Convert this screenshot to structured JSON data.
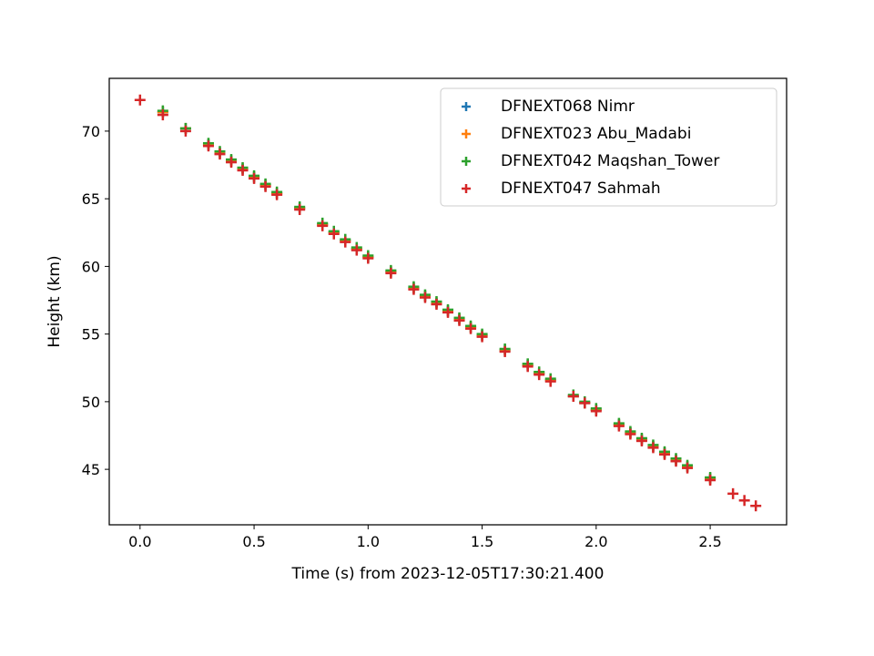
{
  "chart_data": {
    "type": "scatter",
    "title": "",
    "xlabel": "Time (s) from 2023-12-05T17:30:21.400",
    "ylabel": "Height (km)",
    "xlim": [
      -0.135,
      2.835
    ],
    "ylim": [
      40.9,
      73.9
    ],
    "xticks": [
      0.0,
      0.5,
      1.0,
      1.5,
      2.0,
      2.5
    ],
    "xtick_labels": [
      "0.0",
      "0.5",
      "1.0",
      "1.5",
      "2.0",
      "2.5"
    ],
    "yticks": [
      45,
      50,
      55,
      60,
      65,
      70
    ],
    "ytick_labels": [
      "45",
      "50",
      "55",
      "60",
      "65",
      "70"
    ],
    "grid": false,
    "marker": "+",
    "legend_position": "top-right",
    "series": [
      {
        "name": "DFNEXT068 Nimr",
        "color": "#1f77b4",
        "points": [
          [
            0.1,
            71.4
          ],
          [
            0.2,
            70.2
          ],
          [
            0.3,
            69.0
          ],
          [
            0.35,
            68.4
          ],
          [
            0.4,
            67.8
          ],
          [
            0.45,
            67.2
          ],
          [
            0.5,
            66.6
          ],
          [
            0.55,
            66.0
          ],
          [
            0.6,
            65.4
          ],
          [
            0.7,
            64.3
          ],
          [
            0.8,
            63.1
          ],
          [
            0.85,
            62.5
          ],
          [
            0.9,
            61.9
          ],
          [
            0.95,
            61.3
          ],
          [
            1.0,
            60.7
          ],
          [
            1.1,
            59.6
          ],
          [
            1.2,
            58.4
          ],
          [
            1.25,
            57.8
          ],
          [
            1.3,
            57.3
          ],
          [
            1.35,
            56.7
          ],
          [
            1.4,
            56.1
          ],
          [
            1.45,
            55.5
          ],
          [
            1.5,
            54.9
          ],
          [
            1.6,
            53.8
          ],
          [
            1.7,
            52.7
          ],
          [
            1.75,
            52.1
          ],
          [
            1.8,
            51.6
          ],
          [
            1.9,
            50.4
          ],
          [
            1.95,
            49.9
          ],
          [
            2.0,
            49.4
          ],
          [
            2.1,
            48.3
          ],
          [
            2.15,
            47.7
          ],
          [
            2.2,
            47.2
          ],
          [
            2.25,
            46.7
          ],
          [
            2.3,
            46.2
          ],
          [
            2.35,
            45.7
          ],
          [
            2.4,
            45.2
          ],
          [
            2.5,
            44.3
          ]
        ]
      },
      {
        "name": "DFNEXT023 Abu_Madabi",
        "color": "#ff7f0e",
        "points": [
          [
            0.1,
            71.4
          ],
          [
            0.2,
            70.2
          ],
          [
            0.3,
            69.0
          ],
          [
            0.35,
            68.4
          ],
          [
            0.4,
            67.8
          ],
          [
            0.45,
            67.2
          ],
          [
            0.5,
            66.6
          ],
          [
            0.55,
            66.0
          ],
          [
            0.6,
            65.4
          ],
          [
            0.7,
            64.3
          ],
          [
            0.8,
            63.1
          ],
          [
            0.85,
            62.5
          ],
          [
            0.9,
            61.9
          ],
          [
            0.95,
            61.3
          ],
          [
            1.0,
            60.7
          ],
          [
            1.1,
            59.6
          ],
          [
            1.2,
            58.4
          ],
          [
            1.25,
            57.8
          ],
          [
            1.3,
            57.3
          ],
          [
            1.35,
            56.7
          ],
          [
            1.4,
            56.1
          ],
          [
            1.45,
            55.5
          ],
          [
            1.5,
            54.9
          ],
          [
            1.6,
            53.8
          ],
          [
            1.7,
            52.7
          ],
          [
            1.75,
            52.1
          ],
          [
            1.8,
            51.6
          ],
          [
            1.9,
            50.4
          ],
          [
            1.95,
            49.9
          ],
          [
            2.0,
            49.4
          ],
          [
            2.1,
            48.3
          ],
          [
            2.15,
            47.7
          ],
          [
            2.2,
            47.2
          ],
          [
            2.25,
            46.7
          ],
          [
            2.3,
            46.2
          ],
          [
            2.35,
            45.7
          ],
          [
            2.4,
            45.2
          ],
          [
            2.5,
            44.3
          ]
        ]
      },
      {
        "name": "DFNEXT042 Maqshan_Tower",
        "color": "#2ca02c",
        "points": [
          [
            0.1,
            71.5
          ],
          [
            0.2,
            70.2
          ],
          [
            0.3,
            69.1
          ],
          [
            0.35,
            68.5
          ],
          [
            0.4,
            67.9
          ],
          [
            0.45,
            67.3
          ],
          [
            0.5,
            66.7
          ],
          [
            0.55,
            66.1
          ],
          [
            0.6,
            65.5
          ],
          [
            0.7,
            64.4
          ],
          [
            0.8,
            63.2
          ],
          [
            0.85,
            62.6
          ],
          [
            0.9,
            62.0
          ],
          [
            0.95,
            61.4
          ],
          [
            1.0,
            60.8
          ],
          [
            1.1,
            59.7
          ],
          [
            1.2,
            58.5
          ],
          [
            1.25,
            57.9
          ],
          [
            1.3,
            57.4
          ],
          [
            1.35,
            56.8
          ],
          [
            1.4,
            56.2
          ],
          [
            1.45,
            55.6
          ],
          [
            1.5,
            55.0
          ],
          [
            1.6,
            53.9
          ],
          [
            1.7,
            52.8
          ],
          [
            1.75,
            52.2
          ],
          [
            1.8,
            51.7
          ],
          [
            1.9,
            50.5
          ],
          [
            1.95,
            50.0
          ],
          [
            2.0,
            49.5
          ],
          [
            2.1,
            48.4
          ],
          [
            2.15,
            47.8
          ],
          [
            2.2,
            47.3
          ],
          [
            2.25,
            46.8
          ],
          [
            2.3,
            46.3
          ],
          [
            2.35,
            45.8
          ],
          [
            2.4,
            45.3
          ],
          [
            2.5,
            44.4
          ]
        ]
      },
      {
        "name": "DFNEXT047 Sahmah",
        "color": "#d62728",
        "points": [
          [
            0.0,
            72.3
          ],
          [
            0.1,
            71.2
          ],
          [
            0.2,
            70.0
          ],
          [
            0.3,
            68.9
          ],
          [
            0.35,
            68.3
          ],
          [
            0.4,
            67.7
          ],
          [
            0.45,
            67.1
          ],
          [
            0.5,
            66.5
          ],
          [
            0.55,
            65.9
          ],
          [
            0.6,
            65.3
          ],
          [
            0.7,
            64.2
          ],
          [
            0.8,
            63.0
          ],
          [
            0.85,
            62.4
          ],
          [
            0.9,
            61.8
          ],
          [
            0.95,
            61.2
          ],
          [
            1.0,
            60.6
          ],
          [
            1.1,
            59.5
          ],
          [
            1.2,
            58.3
          ],
          [
            1.25,
            57.7
          ],
          [
            1.3,
            57.2
          ],
          [
            1.35,
            56.6
          ],
          [
            1.4,
            56.0
          ],
          [
            1.45,
            55.4
          ],
          [
            1.5,
            54.8
          ],
          [
            1.6,
            53.7
          ],
          [
            1.7,
            52.6
          ],
          [
            1.75,
            52.0
          ],
          [
            1.8,
            51.5
          ],
          [
            1.9,
            50.4
          ],
          [
            1.95,
            49.9
          ],
          [
            2.0,
            49.3
          ],
          [
            2.1,
            48.2
          ],
          [
            2.15,
            47.6
          ],
          [
            2.2,
            47.1
          ],
          [
            2.25,
            46.6
          ],
          [
            2.3,
            46.1
          ],
          [
            2.35,
            45.6
          ],
          [
            2.4,
            45.1
          ],
          [
            2.5,
            44.2
          ],
          [
            2.6,
            43.2
          ],
          [
            2.65,
            42.7
          ],
          [
            2.7,
            42.3
          ]
        ]
      }
    ]
  }
}
